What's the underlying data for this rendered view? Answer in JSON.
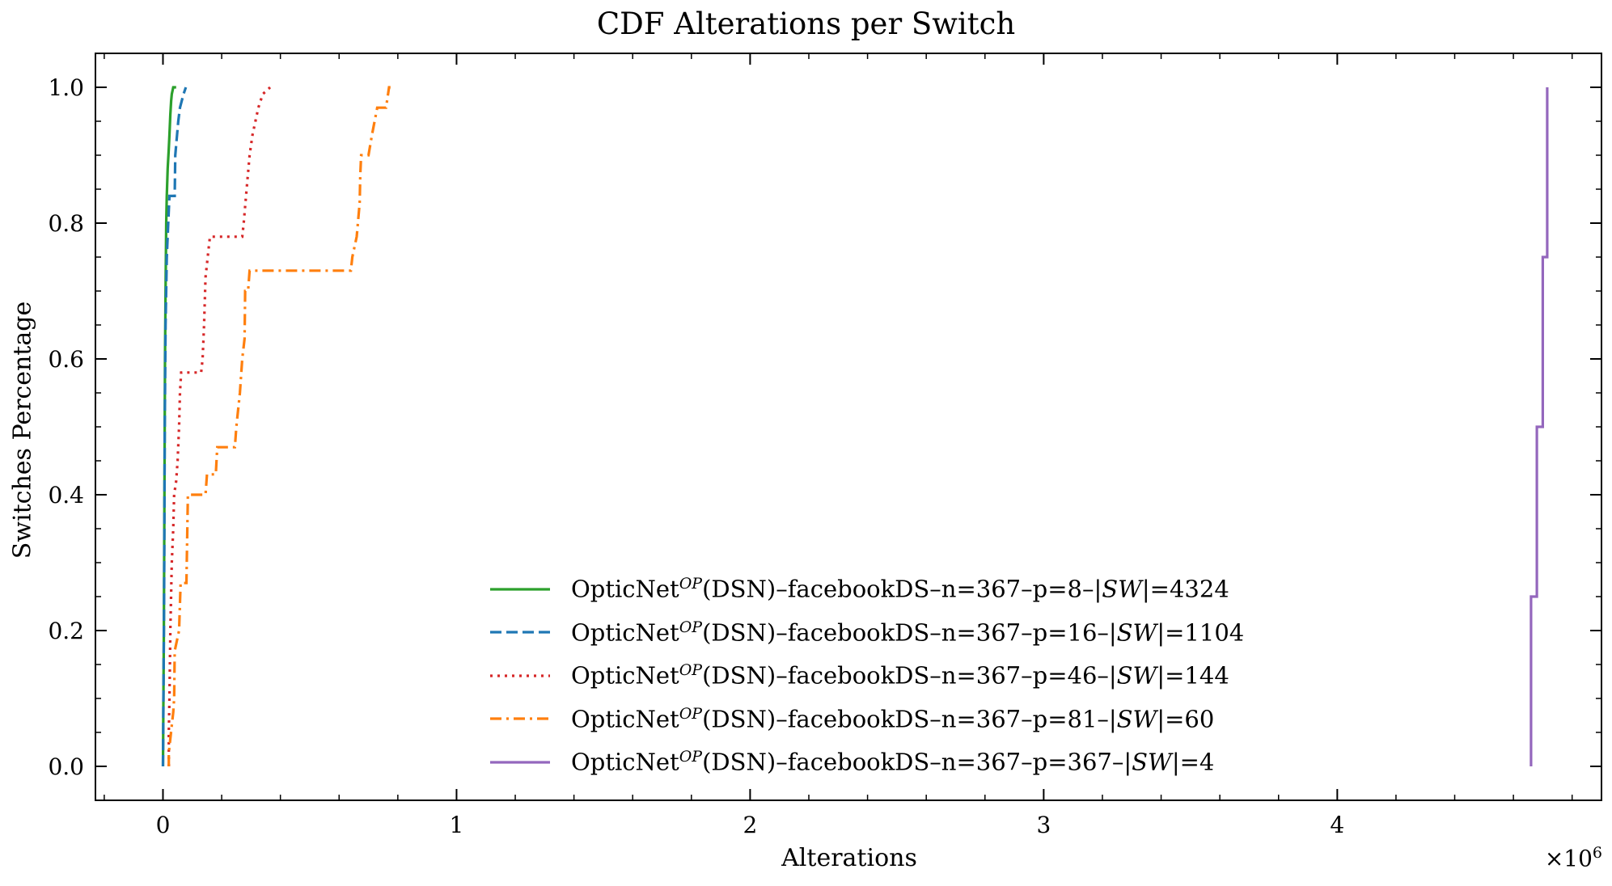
{
  "chart_data": {
    "type": "line",
    "title": "CDF Alterations per Switch",
    "xlabel": "Alterations",
    "ylabel": "Switches Percentage",
    "x_multiplier": "×10⁶",
    "x_multiplier_base": "×10",
    "x_multiplier_exp": "6",
    "xlim": [
      -0.23,
      4.9
    ],
    "ylim": [
      -0.05,
      1.05
    ],
    "xticks": [
      0,
      1,
      2,
      3,
      4
    ],
    "xtick_labels": [
      "0",
      "1",
      "2",
      "3",
      "4"
    ],
    "yticks": [
      0.0,
      0.2,
      0.4,
      0.6,
      0.8,
      1.0
    ],
    "ytick_labels": [
      "0.0",
      "0.2",
      "0.4",
      "0.6",
      "0.8",
      "1.0"
    ],
    "grid": false,
    "legend_position": "bottom-center",
    "series": [
      {
        "name": "OpticNetOP(DSN)–facebookDS–n=367–p=8–|SW|=4324",
        "label_parts": {
          "prefix": "OpticNet",
          "sup": "OP",
          "middle": "(DSN)–facebookDS–n=367–p=8–|",
          "sw": "SW",
          "suffix": "|=4324"
        },
        "color": "#2ca02c",
        "dash": "solid",
        "points": [
          [
            0.0,
            0.0
          ],
          [
            0.003,
            0.2
          ],
          [
            0.005,
            0.4
          ],
          [
            0.007,
            0.6
          ],
          [
            0.009,
            0.7
          ],
          [
            0.011,
            0.8
          ],
          [
            0.013,
            0.84
          ],
          [
            0.016,
            0.88
          ],
          [
            0.02,
            0.91
          ],
          [
            0.022,
            0.93
          ],
          [
            0.025,
            0.96
          ],
          [
            0.028,
            0.98
          ],
          [
            0.03,
            0.99
          ],
          [
            0.035,
            1.0
          ],
          [
            0.045,
            1.0
          ]
        ]
      },
      {
        "name": "OpticNetOP(DSN)–facebookDS–n=367–p=16–|SW|=1104",
        "label_parts": {
          "prefix": "OpticNet",
          "sup": "OP",
          "middle": "(DSN)–facebookDS–n=367–p=16–|",
          "sw": "SW",
          "suffix": "|=1104"
        },
        "color": "#1f77b4",
        "dash": "dashed",
        "points": [
          [
            0.0,
            0.0
          ],
          [
            0.004,
            0.25
          ],
          [
            0.006,
            0.5
          ],
          [
            0.009,
            0.65
          ],
          [
            0.013,
            0.75
          ],
          [
            0.018,
            0.8
          ],
          [
            0.022,
            0.84
          ],
          [
            0.04,
            0.84
          ],
          [
            0.042,
            0.9
          ],
          [
            0.048,
            0.93
          ],
          [
            0.052,
            0.95
          ],
          [
            0.058,
            0.97
          ],
          [
            0.064,
            0.98
          ],
          [
            0.07,
            0.99
          ],
          [
            0.078,
            1.0
          ]
        ]
      },
      {
        "name": "OpticNetOP(DSN)–facebookDS–n=367–p=46–|SW|=144",
        "label_parts": {
          "prefix": "OpticNet",
          "sup": "OP",
          "middle": "(DSN)–facebookDS–n=367–p=46–|",
          "sw": "SW",
          "suffix": "|=144"
        },
        "color": "#d62728",
        "dash": "dotted",
        "points": [
          [
            0.02,
            0.0
          ],
          [
            0.02,
            0.05
          ],
          [
            0.022,
            0.1
          ],
          [
            0.025,
            0.2
          ],
          [
            0.03,
            0.3
          ],
          [
            0.035,
            0.35
          ],
          [
            0.038,
            0.4
          ],
          [
            0.045,
            0.42
          ],
          [
            0.05,
            0.45
          ],
          [
            0.055,
            0.5
          ],
          [
            0.058,
            0.55
          ],
          [
            0.062,
            0.58
          ],
          [
            0.13,
            0.58
          ],
          [
            0.135,
            0.6
          ],
          [
            0.14,
            0.65
          ],
          [
            0.145,
            0.72
          ],
          [
            0.155,
            0.76
          ],
          [
            0.16,
            0.78
          ],
          [
            0.27,
            0.78
          ],
          [
            0.275,
            0.8
          ],
          [
            0.285,
            0.85
          ],
          [
            0.295,
            0.9
          ],
          [
            0.305,
            0.93
          ],
          [
            0.315,
            0.95
          ],
          [
            0.325,
            0.97
          ],
          [
            0.34,
            0.99
          ],
          [
            0.365,
            1.0
          ]
        ]
      },
      {
        "name": "OpticNetOP(DSN)–facebookDS–n=367–p=81–|SW|=60",
        "label_parts": {
          "prefix": "OpticNet",
          "sup": "OP",
          "middle": "(DSN)–facebookDS–n=367–p=81–|",
          "sw": "SW",
          "suffix": "|=60"
        },
        "color": "#ff7f0e",
        "dash": "dashdot",
        "points": [
          [
            0.02,
            0.0
          ],
          [
            0.02,
            0.02
          ],
          [
            0.035,
            0.08
          ],
          [
            0.038,
            0.1
          ],
          [
            0.04,
            0.17
          ],
          [
            0.055,
            0.2
          ],
          [
            0.06,
            0.27
          ],
          [
            0.08,
            0.27
          ],
          [
            0.085,
            0.4
          ],
          [
            0.145,
            0.4
          ],
          [
            0.15,
            0.43
          ],
          [
            0.18,
            0.43
          ],
          [
            0.185,
            0.47
          ],
          [
            0.245,
            0.47
          ],
          [
            0.25,
            0.5
          ],
          [
            0.262,
            0.55
          ],
          [
            0.27,
            0.6
          ],
          [
            0.278,
            0.63
          ],
          [
            0.28,
            0.7
          ],
          [
            0.29,
            0.7
          ],
          [
            0.295,
            0.73
          ],
          [
            0.64,
            0.73
          ],
          [
            0.645,
            0.75
          ],
          [
            0.66,
            0.78
          ],
          [
            0.67,
            0.83
          ],
          [
            0.672,
            0.87
          ],
          [
            0.675,
            0.9
          ],
          [
            0.7,
            0.9
          ],
          [
            0.712,
            0.93
          ],
          [
            0.73,
            0.97
          ],
          [
            0.76,
            0.97
          ],
          [
            0.77,
            1.0
          ],
          [
            0.775,
            1.0
          ]
        ]
      },
      {
        "name": "OpticNetOP(DSN)–facebookDS–n=367–p=367–|SW|=4",
        "label_parts": {
          "prefix": "OpticNet",
          "sup": "OP",
          "middle": "(DSN)–facebookDS–n=367–p=367–|",
          "sw": "SW",
          "suffix": "|=4"
        },
        "color": "#9467bd",
        "dash": "solid",
        "points": [
          [
            4.66,
            0.0
          ],
          [
            4.66,
            0.25
          ],
          [
            4.68,
            0.25
          ],
          [
            4.68,
            0.5
          ],
          [
            4.7,
            0.5
          ],
          [
            4.7,
            0.75
          ],
          [
            4.715,
            0.75
          ],
          [
            4.715,
            1.0
          ]
        ]
      }
    ]
  }
}
